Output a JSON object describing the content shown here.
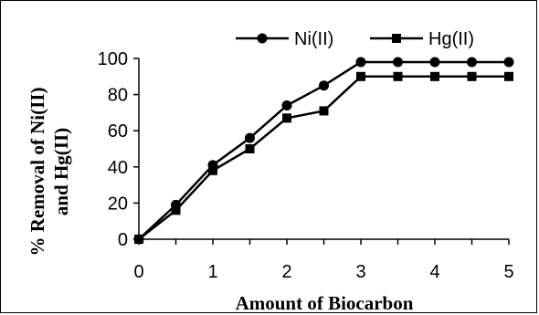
{
  "chart_data": {
    "type": "line",
    "xlabel": "Amount of Biocarbon",
    "ylabel_line1": "% Removal of Ni(II)",
    "ylabel_line2": "and Hg(II)",
    "xlim": [
      0,
      5
    ],
    "ylim": [
      0,
      100
    ],
    "x_ticks": [
      "0",
      "1",
      "2",
      "3",
      "4",
      "5"
    ],
    "y_ticks": [
      "0",
      "20",
      "40",
      "60",
      "80",
      "100"
    ],
    "grid": false,
    "legend_position": "top",
    "x": [
      0,
      0.5,
      1,
      1.5,
      2,
      2.5,
      3,
      3.5,
      4,
      4.5,
      5
    ],
    "series": [
      {
        "name": "Ni(II)",
        "marker": "circle",
        "color": "#000000",
        "values": [
          0,
          19,
          41,
          56,
          74,
          85,
          98,
          98,
          98,
          98,
          98
        ]
      },
      {
        "name": "Hg(II)",
        "marker": "square",
        "color": "#000000",
        "values": [
          0,
          16,
          38,
          50,
          67,
          71,
          90,
          90,
          90,
          90,
          90
        ]
      }
    ]
  }
}
